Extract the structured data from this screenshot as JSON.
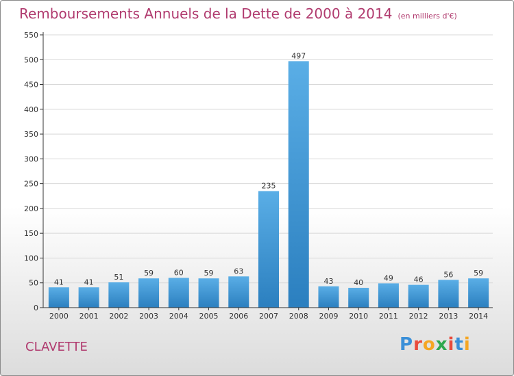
{
  "header": {
    "title": "Remboursements Annuels de la Dette de 2000 à 2014",
    "subtitle": "(en milliers d'€)"
  },
  "footer": {
    "commune": "CLAVETTE",
    "logo_text": "Proxiti"
  },
  "colors": {
    "title": "#b03a6e",
    "bar_top": "#5aaee6",
    "bar_bottom": "#2b7fbf",
    "axis": "#333333",
    "grid": "#d8d8d8"
  },
  "chart_data": {
    "type": "bar",
    "categories": [
      "2000",
      "2001",
      "2002",
      "2003",
      "2004",
      "2005",
      "2006",
      "2007",
      "2008",
      "2009",
      "2010",
      "2011",
      "2012",
      "2013",
      "2014"
    ],
    "values": [
      41,
      41,
      51,
      59,
      60,
      59,
      63,
      235,
      497,
      43,
      40,
      49,
      46,
      56,
      59
    ],
    "ylim": [
      0,
      550
    ],
    "yticks": [
      0,
      50,
      100,
      150,
      200,
      250,
      300,
      350,
      400,
      450,
      500,
      550
    ],
    "grid": true,
    "data_labels": true
  }
}
